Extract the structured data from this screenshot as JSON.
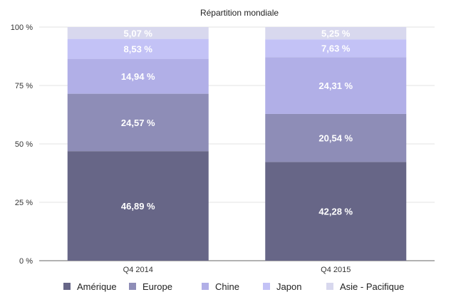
{
  "chart_data": {
    "type": "bar",
    "stacked": true,
    "title": "Répartition mondiale",
    "xlabel": "",
    "ylabel": "",
    "categories": [
      "Q4 2014",
      "Q4 2015"
    ],
    "ylim": [
      0,
      100
    ],
    "yticks": [
      {
        "value": 0,
        "label": "0 %"
      },
      {
        "value": 25,
        "label": "25 %"
      },
      {
        "value": 50,
        "label": "50 %"
      },
      {
        "value": 75,
        "label": "75 %"
      },
      {
        "value": 100,
        "label": "100 %"
      }
    ],
    "grid": true,
    "legend_position": "bottom",
    "series": [
      {
        "name": "Amérique",
        "color": "#676687",
        "values": [
          46.89,
          42.28
        ],
        "labels": [
          "46,89 %",
          "42,28 %"
        ]
      },
      {
        "name": "Europe",
        "color": "#8e8db7",
        "values": [
          24.57,
          20.54
        ],
        "labels": [
          "24,57 %",
          "20,54 %"
        ]
      },
      {
        "name": "Chine",
        "color": "#b1afe7",
        "values": [
          14.94,
          24.31
        ],
        "labels": [
          "14,94 %",
          "24,31 %"
        ]
      },
      {
        "name": "Japon",
        "color": "#c3c2f6",
        "values": [
          8.53,
          7.63
        ],
        "labels": [
          "8,53 %",
          "7,63 %"
        ]
      },
      {
        "name": "Asie - Pacifique",
        "color": "#d8d8ee",
        "values": [
          5.07,
          5.25
        ],
        "labels": [
          "5,07 %",
          "5,25 %"
        ]
      }
    ]
  }
}
